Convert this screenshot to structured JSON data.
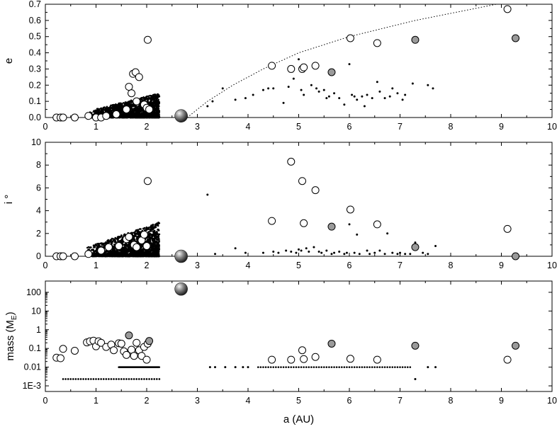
{
  "chart_data": [
    {
      "type": "scatter",
      "panel": "eccentricity",
      "ylabel": "e",
      "xlim": [
        0,
        10
      ],
      "ylim": [
        0,
        0.7
      ],
      "x_ticks": [
        "0",
        "1",
        "2",
        "3",
        "4",
        "5",
        "6",
        "7",
        "8",
        "9",
        "10"
      ],
      "y_ticks": [
        "0.0",
        "0.1",
        "0.2",
        "0.3",
        "0.4",
        "0.5",
        "0.6",
        "0.7"
      ],
      "grid": false,
      "series": [
        {
          "marker": "open-circle",
          "points": [
            [
              0.22,
              0.0
            ],
            [
              0.3,
              0.0
            ],
            [
              0.35,
              0.0
            ],
            [
              0.58,
              0.0
            ],
            [
              0.85,
              0.01
            ],
            [
              1.0,
              0.0
            ],
            [
              1.1,
              0.0
            ],
            [
              1.2,
              0.01
            ],
            [
              1.4,
              0.02
            ],
            [
              1.6,
              0.05
            ],
            [
              1.65,
              0.19
            ],
            [
              1.7,
              0.15
            ],
            [
              1.73,
              0.27
            ],
            [
              1.78,
              0.28
            ],
            [
              1.8,
              0.1
            ],
            [
              1.85,
              0.25
            ],
            [
              1.95,
              0.08
            ],
            [
              2.0,
              0.06
            ],
            [
              2.02,
              0.48
            ],
            [
              2.05,
              0.05
            ],
            [
              4.47,
              0.32
            ],
            [
              4.85,
              0.3
            ],
            [
              5.07,
              0.3
            ],
            [
              5.1,
              0.31
            ],
            [
              5.33,
              0.32
            ],
            [
              6.02,
              0.49
            ],
            [
              6.55,
              0.46
            ],
            [
              9.12,
              0.67
            ]
          ]
        },
        {
          "marker": "gray-circle",
          "points": [
            [
              5.65,
              0.28
            ],
            [
              7.3,
              0.48
            ],
            [
              9.28,
              0.49
            ]
          ]
        },
        {
          "marker": "large-gray-sphere",
          "points": [
            [
              2.68,
              0.01
            ]
          ]
        },
        {
          "marker": "small-dot",
          "points": [
            [
              3.2,
              0.07
            ],
            [
              3.3,
              0.1
            ],
            [
              3.5,
              0.18
            ],
            [
              3.75,
              0.11
            ],
            [
              3.95,
              0.12
            ],
            [
              4.1,
              0.14
            ],
            [
              4.3,
              0.17
            ],
            [
              4.4,
              0.18
            ],
            [
              4.5,
              0.18
            ],
            [
              4.7,
              0.09
            ],
            [
              4.8,
              0.19
            ],
            [
              4.9,
              0.24
            ],
            [
              5.0,
              0.36
            ],
            [
              5.05,
              0.17
            ],
            [
              5.1,
              0.14
            ],
            [
              5.25,
              0.2
            ],
            [
              5.35,
              0.18
            ],
            [
              5.4,
              0.16
            ],
            [
              5.5,
              0.17
            ],
            [
              5.55,
              0.12
            ],
            [
              5.6,
              0.13
            ],
            [
              5.7,
              0.15
            ],
            [
              5.8,
              0.12
            ],
            [
              5.9,
              0.08
            ],
            [
              6.0,
              0.33
            ],
            [
              6.05,
              0.14
            ],
            [
              6.1,
              0.13
            ],
            [
              6.15,
              0.11
            ],
            [
              6.25,
              0.13
            ],
            [
              6.3,
              0.07
            ],
            [
              6.35,
              0.14
            ],
            [
              6.45,
              0.12
            ],
            [
              6.55,
              0.22
            ],
            [
              6.6,
              0.16
            ],
            [
              6.7,
              0.12
            ],
            [
              6.8,
              0.13
            ],
            [
              6.85,
              0.18
            ],
            [
              6.95,
              0.15
            ],
            [
              7.05,
              0.11
            ],
            [
              7.1,
              0.14
            ],
            [
              7.25,
              0.21
            ],
            [
              7.55,
              0.2
            ],
            [
              7.65,
              0.18
            ]
          ]
        }
      ],
      "curve": {
        "style": "dotted",
        "points": [
          [
            2.8,
            0.0
          ],
          [
            3.2,
            0.1
          ],
          [
            3.7,
            0.2
          ],
          [
            4.3,
            0.3
          ],
          [
            5.0,
            0.4
          ],
          [
            6.0,
            0.5
          ],
          [
            7.3,
            0.6
          ],
          [
            8.9,
            0.7
          ]
        ]
      },
      "dense_cluster": {
        "marker": "small-dot",
        "x_range": [
          0.8,
          2.25
        ],
        "y_range": [
          0.0,
          0.15
        ]
      }
    },
    {
      "type": "scatter",
      "panel": "inclination",
      "ylabel": "i °",
      "xlim": [
        0,
        10
      ],
      "ylim": [
        0,
        10
      ],
      "x_ticks": [
        "0",
        "1",
        "2",
        "3",
        "4",
        "5",
        "6",
        "7",
        "8",
        "9",
        "10"
      ],
      "y_ticks": [
        "0",
        "2",
        "4",
        "6",
        "8",
        "10"
      ],
      "grid": false,
      "series": [
        {
          "marker": "open-circle",
          "points": [
            [
              0.22,
              0.0
            ],
            [
              0.3,
              0.0
            ],
            [
              0.35,
              0.0
            ],
            [
              0.58,
              0.0
            ],
            [
              0.85,
              0.2
            ],
            [
              1.1,
              0.5
            ],
            [
              1.25,
              0.8
            ],
            [
              1.45,
              0.9
            ],
            [
              1.6,
              1.5
            ],
            [
              1.65,
              1.7
            ],
            [
              1.75,
              1.0
            ],
            [
              1.8,
              0.8
            ],
            [
              1.9,
              1.4
            ],
            [
              1.95,
              1.9
            ],
            [
              2.0,
              0.9
            ],
            [
              2.02,
              6.6
            ],
            [
              4.47,
              3.1
            ],
            [
              4.85,
              8.3
            ],
            [
              5.07,
              6.6
            ],
            [
              5.1,
              2.9
            ],
            [
              5.33,
              5.8
            ],
            [
              6.02,
              4.1
            ],
            [
              6.55,
              2.8
            ],
            [
              9.12,
              2.4
            ]
          ]
        },
        {
          "marker": "gray-circle",
          "points": [
            [
              5.65,
              2.6
            ],
            [
              7.3,
              0.8
            ],
            [
              9.28,
              0.0
            ]
          ]
        },
        {
          "marker": "large-gray-sphere",
          "points": [
            [
              2.68,
              0.0
            ]
          ]
        },
        {
          "marker": "small-dot",
          "points": [
            [
              3.2,
              5.4
            ],
            [
              3.35,
              0.2
            ],
            [
              3.75,
              0.7
            ],
            [
              3.95,
              0.3
            ],
            [
              4.3,
              0.3
            ],
            [
              4.5,
              0.4
            ],
            [
              4.6,
              0.3
            ],
            [
              4.75,
              0.5
            ],
            [
              4.85,
              0.4
            ],
            [
              4.95,
              0.3
            ],
            [
              5.0,
              0.6
            ],
            [
              5.05,
              0.5
            ],
            [
              5.15,
              0.7
            ],
            [
              5.2,
              0.4
            ],
            [
              5.3,
              0.8
            ],
            [
              5.4,
              0.4
            ],
            [
              5.45,
              0.3
            ],
            [
              5.55,
              0.5
            ],
            [
              5.65,
              0.2
            ],
            [
              5.7,
              0.3
            ],
            [
              5.8,
              0.4
            ],
            [
              5.9,
              0.2
            ],
            [
              5.95,
              0.3
            ],
            [
              6.0,
              2.8
            ],
            [
              6.1,
              0.3
            ],
            [
              6.15,
              1.9
            ],
            [
              6.2,
              0.2
            ],
            [
              6.35,
              0.5
            ],
            [
              6.4,
              0.2
            ],
            [
              6.5,
              0.3
            ],
            [
              6.6,
              0.5
            ],
            [
              6.7,
              0.2
            ],
            [
              6.75,
              2.0
            ],
            [
              6.85,
              0.3
            ],
            [
              6.95,
              0.2
            ],
            [
              7.0,
              0.3
            ],
            [
              7.1,
              0.2
            ],
            [
              7.2,
              0.2
            ],
            [
              7.3,
              1.2
            ],
            [
              7.45,
              0.3
            ],
            [
              7.55,
              0.2
            ],
            [
              7.7,
              0.9
            ]
          ]
        },
        "dense_cluster_placeholder"
      ],
      "dense_cluster": {
        "marker": "small-dot",
        "x_range": [
          0.8,
          2.25
        ],
        "y_range": [
          0.0,
          3.0
        ]
      }
    },
    {
      "type": "scatter",
      "panel": "mass",
      "ylabel": "mass (M",
      "ylabel_sub": "E",
      "ylabel_end": ")",
      "xlabel": "a (AU)",
      "xlim": [
        0,
        10
      ],
      "ylim": [
        0.0005,
        400
      ],
      "yscale": "log",
      "x_ticks": [
        "0",
        "1",
        "2",
        "3",
        "4",
        "5",
        "6",
        "7",
        "8",
        "9",
        "10"
      ],
      "y_ticks": [
        "1E-3",
        "0.01",
        "0.1",
        "1",
        "10",
        "100"
      ],
      "grid": false,
      "series": [
        {
          "marker": "open-circle",
          "points": [
            [
              0.22,
              0.032
            ],
            [
              0.3,
              0.03
            ],
            [
              0.35,
              0.095
            ],
            [
              0.58,
              0.075
            ],
            [
              0.82,
              0.21
            ],
            [
              0.88,
              0.24
            ],
            [
              0.95,
              0.26
            ],
            [
              1.0,
              0.13
            ],
            [
              1.05,
              0.24
            ],
            [
              1.1,
              0.2
            ],
            [
              1.2,
              0.12
            ],
            [
              1.3,
              0.16
            ],
            [
              1.35,
              0.08
            ],
            [
              1.45,
              0.19
            ],
            [
              1.5,
              0.18
            ],
            [
              1.55,
              0.07
            ],
            [
              1.6,
              0.045
            ],
            [
              1.7,
              0.085
            ],
            [
              1.75,
              0.04
            ],
            [
              1.8,
              0.2
            ],
            [
              1.85,
              0.08
            ],
            [
              1.9,
              0.04
            ],
            [
              1.95,
              0.12
            ],
            [
              2.0,
              0.025
            ],
            [
              2.02,
              0.18
            ],
            [
              4.47,
              0.025
            ],
            [
              4.85,
              0.025
            ],
            [
              5.07,
              0.08
            ],
            [
              5.1,
              0.027
            ],
            [
              5.33,
              0.035
            ],
            [
              6.02,
              0.028
            ],
            [
              6.55,
              0.025
            ],
            [
              9.12,
              0.025
            ]
          ]
        },
        {
          "marker": "gray-circle",
          "points": [
            [
              1.65,
              0.5
            ],
            [
              2.05,
              0.25
            ],
            [
              5.65,
              0.18
            ],
            [
              7.3,
              0.14
            ],
            [
              9.28,
              0.14
            ]
          ]
        },
        {
          "marker": "large-gray-sphere",
          "points": [
            [
              2.68,
              150
            ]
          ]
        },
        {
          "marker": "small-dot",
          "points": [
            [
              3.25,
              0.01
            ],
            [
              3.35,
              0.01
            ],
            [
              3.55,
              0.01
            ],
            [
              3.75,
              0.01
            ],
            [
              3.9,
              0.01
            ],
            [
              4.0,
              0.01
            ],
            [
              7.3,
              0.0023
            ],
            [
              7.55,
              0.01
            ],
            [
              7.7,
              0.01
            ]
          ]
        }
      ],
      "dot_bands": [
        {
          "x_range": [
            0.35,
            2.25
          ],
          "y": 0.0023
        },
        {
          "x_range": [
            1.45,
            2.25
          ],
          "y": 0.01,
          "dense": true
        },
        {
          "x_range": [
            4.2,
            7.2
          ],
          "y": 0.01
        }
      ]
    }
  ]
}
